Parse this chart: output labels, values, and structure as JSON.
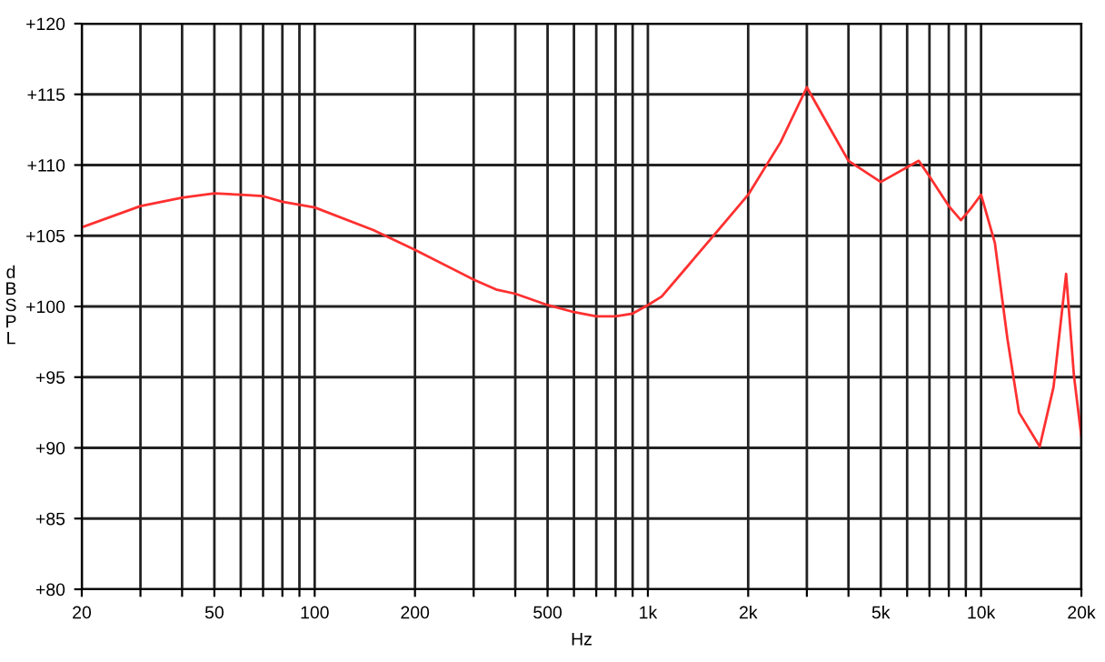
{
  "chart_data": {
    "type": "line",
    "xlabel": "Hz",
    "ylabel": "d\nB\nS\nP\nL",
    "log": "x",
    "grid": true,
    "x": [
      20,
      30,
      40,
      50,
      60,
      70,
      80,
      100,
      150,
      200,
      300,
      350,
      400,
      500,
      600,
      700,
      800,
      900,
      1000,
      1100,
      1300,
      1600,
      2000,
      2500,
      3000,
      3500,
      4000,
      5000,
      6500,
      7000,
      8000,
      8700,
      9300,
      10000,
      11000,
      12000,
      13000,
      15000,
      16500,
      18000,
      19000,
      20000
    ],
    "series": [
      {
        "color": "#ff3030",
        "values": [
          105.6,
          107.1,
          107.7,
          108.0,
          107.9,
          107.8,
          107.4,
          107.0,
          105.4,
          104.0,
          101.9,
          101.2,
          100.9,
          100.1,
          99.6,
          99.3,
          99.3,
          99.5,
          100.1,
          100.7,
          102.7,
          105.2,
          107.9,
          111.6,
          115.5,
          112.7,
          110.3,
          108.8,
          110.3,
          109.2,
          107.1,
          106.1,
          106.9,
          107.9,
          104.5,
          97.7,
          92.5,
          90.1,
          94.3,
          102.3,
          95.1,
          90.8
        ]
      }
    ],
    "xlim": [
      20,
      20000
    ],
    "ylim": [
      80,
      120
    ],
    "xticks": [
      20,
      {
        "value": 30,
        "label": null
      },
      {
        "value": 40,
        "label": null
      },
      50,
      {
        "value": 60,
        "label": null
      },
      {
        "value": 70,
        "label": null
      },
      {
        "value": 80,
        "label": null
      },
      {
        "value": 90,
        "label": null
      },
      100,
      200,
      {
        "value": 300,
        "label": null
      },
      {
        "value": 400,
        "label": null
      },
      500,
      {
        "value": 600,
        "label": null
      },
      {
        "value": 700,
        "label": null
      },
      {
        "value": 800,
        "label": null
      },
      {
        "value": 900,
        "label": null
      },
      {
        "value": 1000,
        "label": "1k"
      },
      {
        "value": 2000,
        "label": "2k"
      },
      {
        "value": 3000,
        "label": null
      },
      {
        "value": 4000,
        "label": null
      },
      {
        "value": 5000,
        "label": "5k"
      },
      {
        "value": 6000,
        "label": null
      },
      {
        "value": 7000,
        "label": null
      },
      {
        "value": 8000,
        "label": null
      },
      {
        "value": 9000,
        "label": null
      },
      {
        "value": 10000,
        "label": "10k"
      },
      {
        "value": 20000,
        "label": "20k"
      }
    ],
    "yticks": [
      {
        "value": 80,
        "label": "+80"
      },
      {
        "value": 85,
        "label": "+85"
      },
      {
        "value": 90,
        "label": "+90"
      },
      {
        "value": 95,
        "label": "+95"
      },
      {
        "value": 100,
        "label": "+100"
      },
      {
        "value": 105,
        "label": "+105"
      },
      {
        "value": 110,
        "label": "+110"
      },
      {
        "value": 115,
        "label": "+115"
      },
      {
        "value": 120,
        "label": "+120"
      }
    ]
  }
}
